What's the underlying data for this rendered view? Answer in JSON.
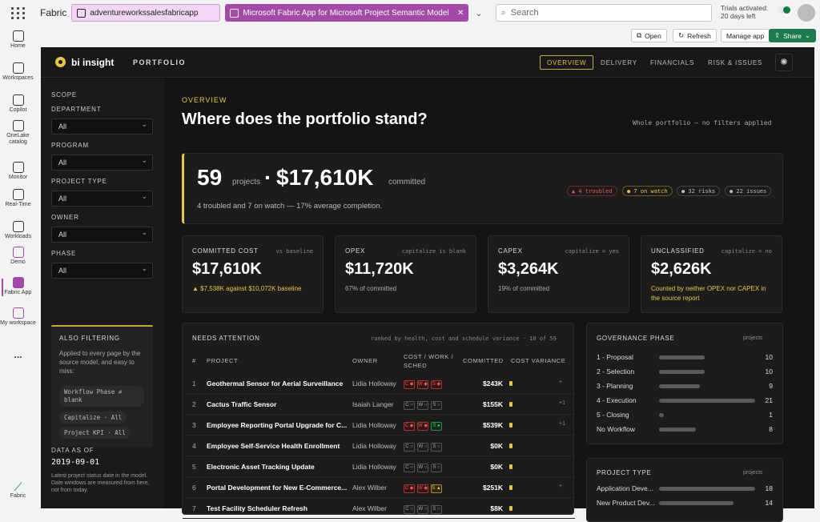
{
  "topbar": {
    "brand": "Fabric",
    "tab1": "adventureworkssalesfabricapp",
    "tab2": "Microsoft Fabric App for Microsoft Project Semantic Model",
    "search_placeholder": "Search",
    "trial_line1": "Trials activated:",
    "trial_line2": "20 days left"
  },
  "rail": [
    {
      "label": "Home",
      "icon": "home-icon"
    },
    {
      "label": "Workspaces",
      "icon": "workspaces-icon"
    },
    {
      "label": "Copilot",
      "icon": "copilot-icon"
    },
    {
      "label": "OneLake catalog",
      "icon": "onelake-icon"
    },
    {
      "label": "Monitor",
      "icon": "monitor-icon"
    },
    {
      "label": "Real-Time",
      "icon": "realtime-icon"
    },
    {
      "label": "Workloads",
      "icon": "workloads-icon"
    },
    {
      "label": "Demo",
      "icon": "demo-icon"
    },
    {
      "label": "Fabric App",
      "icon": "fabric-app-icon"
    },
    {
      "label": "My workspace",
      "icon": "my-workspace-icon"
    },
    {
      "label": "...",
      "icon": "more-icon"
    },
    {
      "label": "Fabric",
      "icon": "fabric-logo-icon"
    }
  ],
  "actions": {
    "open": "Open",
    "refresh": "Refresh",
    "manage": "Manage app",
    "share": "Share"
  },
  "app": {
    "logo": "bi insight",
    "section": "PORTFOLIO",
    "nav": [
      "OVERVIEW",
      "DELIVERY",
      "FINANCIALS",
      "RISK & ISSUES"
    ]
  },
  "sidebar": {
    "scope": "SCOPE",
    "filters": [
      {
        "label": "DEPARTMENT",
        "value": "All"
      },
      {
        "label": "PROGRAM",
        "value": "All"
      },
      {
        "label": "PROJECT TYPE",
        "value": "All"
      },
      {
        "label": "OWNER",
        "value": "All"
      },
      {
        "label": "PHASE",
        "value": "All"
      }
    ],
    "also_title": "ALSO FILTERING",
    "also_text": "Applied to every page by the source model, and easy to miss:",
    "also_chips": [
      "Workflow Phase ≠ blank",
      "Capitalize · All",
      "Project KPI · All"
    ],
    "data_as_of_label": "DATA AS OF",
    "data_as_of": "2019-09-01",
    "data_note": "Latest project status date in the model. Date windows are measured from here, not from today."
  },
  "overview": {
    "eyebrow": "OVERVIEW",
    "title": "Where does the portfolio stand?",
    "scope_note": "Whole portfolio — no filters applied",
    "hero": {
      "count": "59",
      "count_unit": "projects",
      "amount": "$17,610K",
      "amount_unit": "committed",
      "summary": "4 troubled and 7 on watch — 17% average completion.",
      "pills": [
        "▲ 4 troubled",
        "● 7 on watch",
        "● 32 risks",
        "● 22 issues"
      ]
    }
  },
  "kpis": [
    {
      "label": "COMMITTED COST",
      "note": "vs baseline",
      "value": "$17,610K",
      "sub": "▲ $7,538K against $10,072K baseline"
    },
    {
      "label": "OPEX",
      "note": "capitalize is blank",
      "value": "$11,720K",
      "sub": "67% of committed"
    },
    {
      "label": "CAPEX",
      "note": "capitalize = yes",
      "value": "$3,264K",
      "sub": "19% of committed"
    },
    {
      "label": "UNCLASSIFIED",
      "note": "capitalize = no",
      "value": "$2,626K",
      "sub": "Counted by neither OPEX nor CAPEX in the source report"
    }
  ],
  "attention": {
    "title": "NEEDS ATTENTION",
    "note": "ranked by health, cost and schedule variance · 10 of 59",
    "headers": [
      "#",
      "PROJECT",
      "OWNER",
      "COST / WORK / SCHED",
      "COMMITTED",
      "COST VARIANCE"
    ],
    "rows": [
      {
        "n": "1",
        "project": "Geothermal Sensor for Aerial Surveillance",
        "owner": "Lidia Holloway",
        "flags": [
          "C ◆",
          "W ◆",
          "S ◆"
        ],
        "committed": "$243K",
        "var": "+"
      },
      {
        "n": "2",
        "project": "Cactus Traffic Sensor",
        "owner": "Isaiah Langer",
        "flags": [
          "C ○",
          "W ○",
          "S ○"
        ],
        "committed": "$155K",
        "var": "+1"
      },
      {
        "n": "3",
        "project": "Employee Reporting Portal Upgrade for C...",
        "owner": "Lidia Holloway",
        "flags": [
          "C ◆",
          "W ◆",
          "S ●"
        ],
        "committed": "$539K",
        "var": "+1"
      },
      {
        "n": "4",
        "project": "Employee Self-Service Health Enrollment",
        "owner": "Lidia Holloway",
        "flags": [
          "C ○",
          "W ○",
          "S ○"
        ],
        "committed": "$0K",
        "var": ""
      },
      {
        "n": "5",
        "project": "Electronic Asset Tracking Update",
        "owner": "Lidia Holloway",
        "flags": [
          "C ○",
          "W ○",
          "S ○"
        ],
        "committed": "$0K",
        "var": ""
      },
      {
        "n": "6",
        "project": "Portal Development for New E-Commerce...",
        "owner": "Alex Wilber",
        "flags": [
          "C ◆",
          "W ◆",
          "S ▲"
        ],
        "committed": "$251K",
        "var": "+"
      },
      {
        "n": "7",
        "project": "Test Facility Scheduler Refresh",
        "owner": "Alex Wilber",
        "flags": [
          "C ○",
          "W ○",
          "S ○"
        ],
        "committed": "$8K",
        "var": ""
      }
    ]
  },
  "governance": {
    "title": "GOVERNANCE PHASE",
    "unit": "projects",
    "rows": [
      {
        "label": "1 - Proposal",
        "value": 10
      },
      {
        "label": "2 - Selection",
        "value": 10
      },
      {
        "label": "3 - Planning",
        "value": 9
      },
      {
        "label": "4 - Execution",
        "value": 21
      },
      {
        "label": "5 - Closing",
        "value": 1
      },
      {
        "label": "No Workflow",
        "value": 8
      }
    ]
  },
  "project_type": {
    "title": "PROJECT TYPE",
    "unit": "projects",
    "rows": [
      {
        "label": "Application Deve...",
        "value": 18
      },
      {
        "label": "New Product Dev...",
        "value": 14
      }
    ]
  }
}
